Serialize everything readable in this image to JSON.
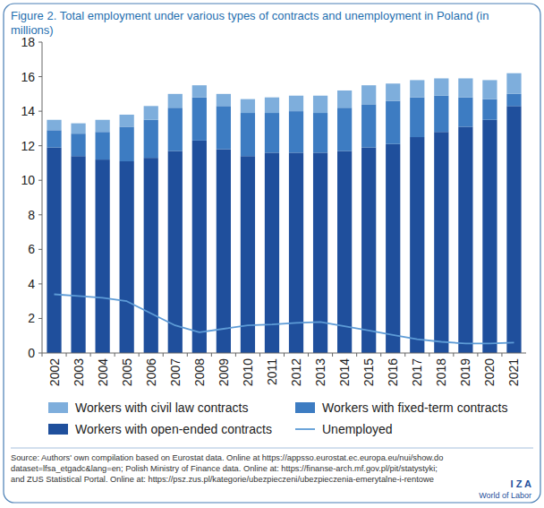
{
  "chart_data": {
    "type": "bar",
    "title": "Figure 2. Total employment under various types of contracts and unemployment in Poland (in millions)",
    "categories": [
      "2002",
      "2003",
      "2004",
      "2005",
      "2006",
      "2007",
      "2008",
      "2009",
      "2010",
      "2011",
      "2012",
      "2013",
      "2014",
      "2015",
      "2016",
      "2017",
      "2018",
      "2019",
      "2020",
      "2021"
    ],
    "stacked": true,
    "ylim": [
      0,
      18
    ],
    "yticks": [
      0,
      2,
      4,
      6,
      8,
      10,
      12,
      14,
      16,
      18
    ],
    "grid": false,
    "legend": "bottom",
    "series": [
      {
        "name": "Workers with open-ended contracts",
        "type": "bar",
        "color": "#1f4f9c",
        "values": [
          11.9,
          11.4,
          11.2,
          11.1,
          11.3,
          11.7,
          12.3,
          11.8,
          11.4,
          11.6,
          11.6,
          11.6,
          11.7,
          11.9,
          12.1,
          12.5,
          12.8,
          13.1,
          13.5,
          14.3
        ]
      },
      {
        "name": "Workers with fixed-term contracts",
        "type": "bar",
        "color": "#3d7cc2",
        "values": [
          1.0,
          1.3,
          1.6,
          2.0,
          2.2,
          2.5,
          2.5,
          2.5,
          2.5,
          2.3,
          2.4,
          2.3,
          2.5,
          2.5,
          2.5,
          2.3,
          2.1,
          1.7,
          1.2,
          0.7
        ]
      },
      {
        "name": "Workers with civil law contracts",
        "type": "bar",
        "color": "#7eaedc",
        "values": [
          0.6,
          0.6,
          0.7,
          0.7,
          0.8,
          0.8,
          0.7,
          0.7,
          0.8,
          0.9,
          0.9,
          1.0,
          1.0,
          1.1,
          1.0,
          1.0,
          1.0,
          1.1,
          1.1,
          1.2
        ]
      },
      {
        "name": "Unemployed",
        "type": "line",
        "color": "#5d9bd6",
        "values": [
          3.4,
          3.3,
          3.2,
          3.0,
          2.3,
          1.6,
          1.2,
          1.4,
          1.6,
          1.65,
          1.75,
          1.8,
          1.55,
          1.3,
          1.05,
          0.8,
          0.65,
          0.55,
          0.55,
          0.6
        ]
      }
    ],
    "annotations": [
      "Source: Authors' own compilation based on Eurostat data. Online at https://appsso.eurostat.ec.europa.eu/nui/show.do",
      "dataset=lfsa_etgadc&lang=en; Polish Ministry of Finance data. Online at: https://finanse-arch.mf.gov.pl/pit/statystyki;",
      "and ZUS Statistical Portal. Online at: https://psz.zus.pl/kategorie/ubezpieczeni/ubezpieczenia-emerytalne-i-rentowe",
      "I Z A",
      "World of Labor"
    ]
  }
}
